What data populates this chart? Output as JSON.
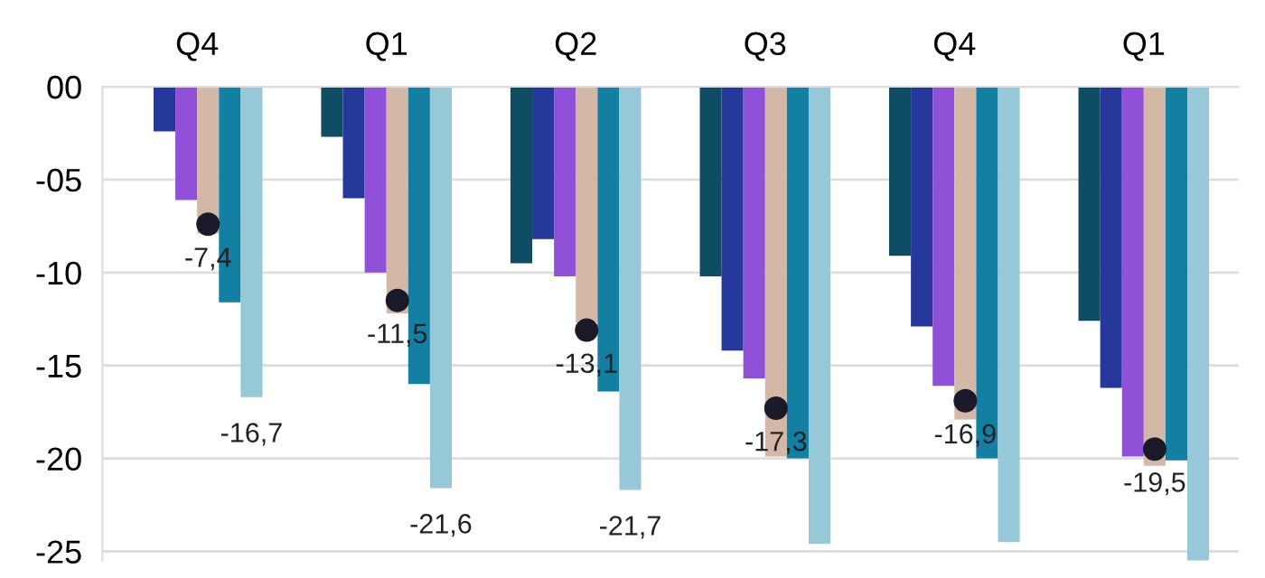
{
  "chart_data": {
    "type": "bar",
    "categories": [
      "Q4",
      "Q1",
      "Q2",
      "Q3",
      "Q4",
      "Q1"
    ],
    "series": [
      {
        "color": "#0e4d64",
        "values": [
          0,
          -2.7,
          -9.5,
          -10.2,
          -9.1,
          -12.6
        ]
      },
      {
        "color": "#26389a",
        "values": [
          -2.4,
          -6.0,
          -8.2,
          -14.2,
          -12.9,
          -16.2
        ]
      },
      {
        "color": "#9050d8",
        "values": [
          -6.1,
          -10.0,
          -10.2,
          -15.7,
          -16.1,
          -19.9
        ]
      },
      {
        "color": "#d3b8a8",
        "values": [
          -7.9,
          -12.2,
          -12.7,
          -19.9,
          -17.9,
          -20.4
        ]
      },
      {
        "color": "#127fa3",
        "values": [
          -11.6,
          -16.0,
          -16.4,
          -20.0,
          -20.0,
          -20.1
        ]
      },
      {
        "color": "#97c8d8",
        "values": [
          -16.7,
          -21.6,
          -21.7,
          -24.6,
          -24.5,
          -25.5
        ],
        "value_labels": [
          "-16,7",
          "-21,6",
          "-21,7",
          null,
          null,
          null
        ]
      },
      {
        "type": "scatter",
        "color": "#1a1a2a",
        "values": [
          -7.4,
          -11.5,
          -13.1,
          -17.3,
          -16.9,
          -19.5
        ],
        "value_labels": [
          "-7,4",
          "-11,5",
          "-13,1",
          "-17,3",
          "-16,9",
          "-19,5"
        ]
      }
    ],
    "ylim": [
      -25.5,
      0
    ],
    "yticks": [
      {
        "value": 0,
        "label": "00"
      },
      {
        "value": -5,
        "label": "-05"
      },
      {
        "value": -10,
        "label": "-10"
      },
      {
        "value": -15,
        "label": "-15"
      },
      {
        "value": -20,
        "label": "-20"
      },
      {
        "value": -25,
        "label": "-25"
      }
    ],
    "grid": "y",
    "marker": "circle"
  }
}
